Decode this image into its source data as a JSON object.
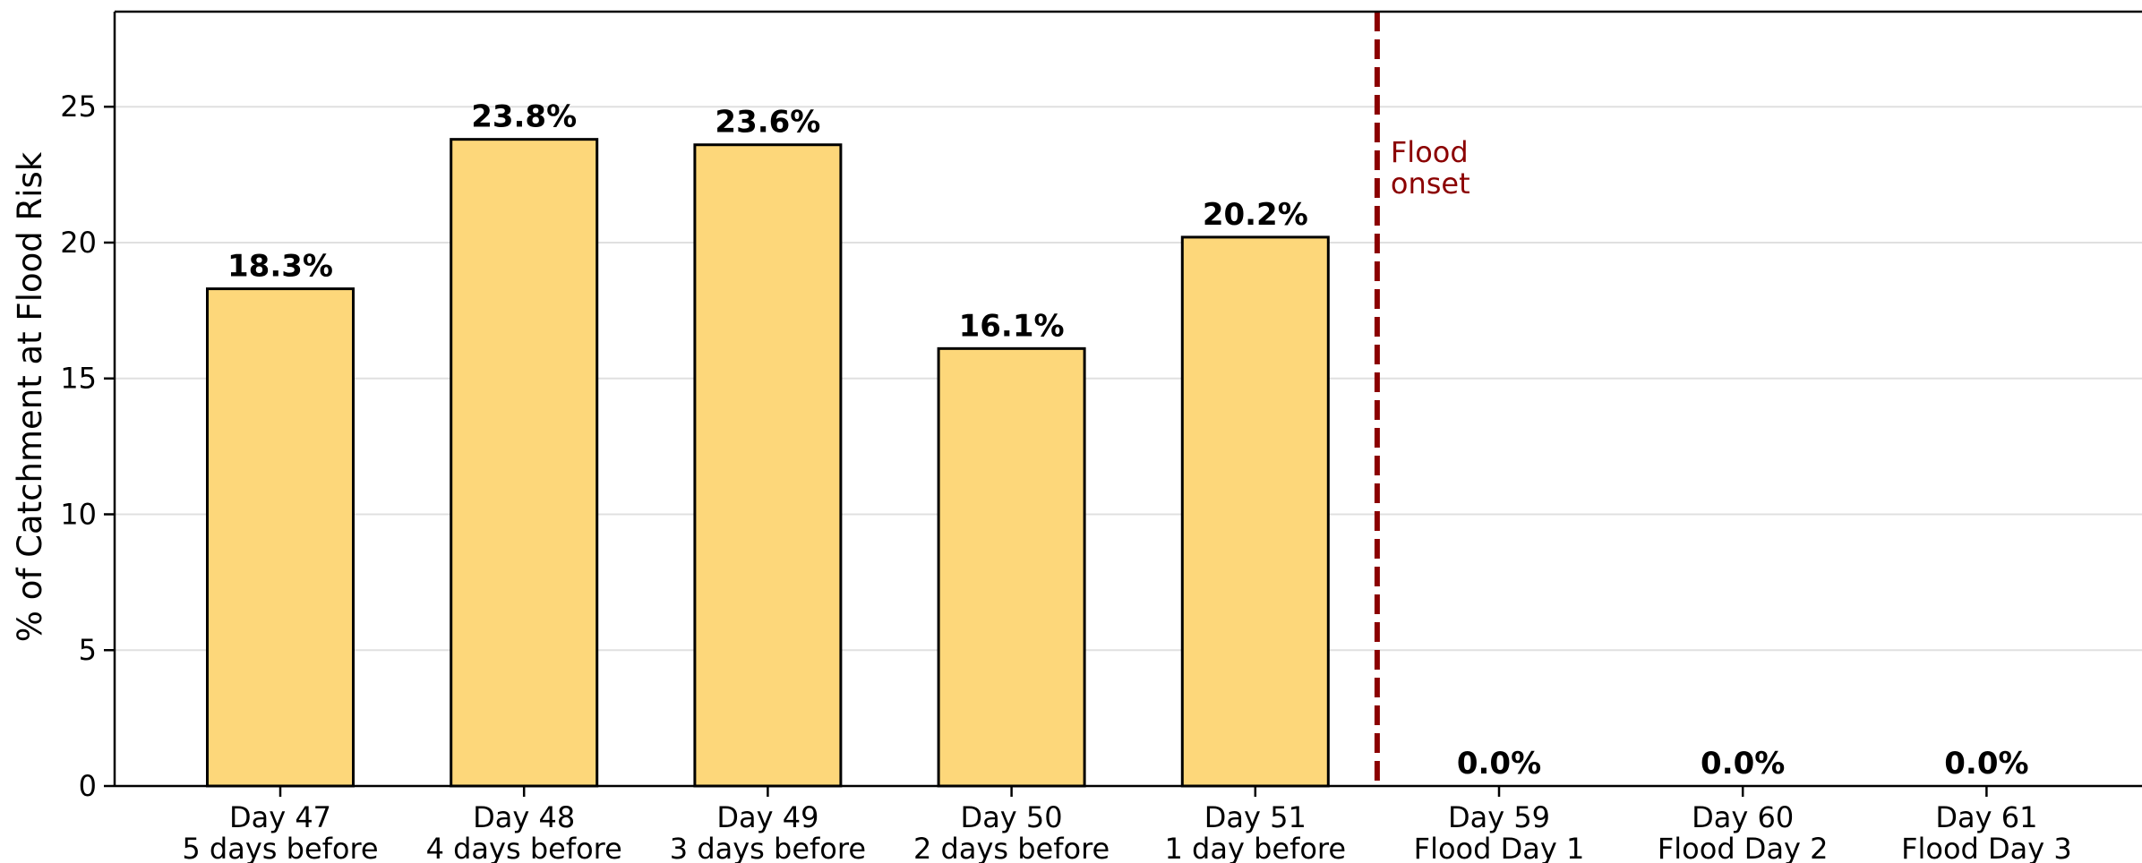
{
  "chart_data": {
    "type": "bar",
    "categories": [
      [
        "Day 47",
        "5 days before"
      ],
      [
        "Day 48",
        "4 days before"
      ],
      [
        "Day 49",
        "3 days before"
      ],
      [
        "Day 50",
        "2 days before"
      ],
      [
        "Day 51",
        "1 day before"
      ],
      [
        "Day 59",
        "Flood Day 1"
      ],
      [
        "Day 60",
        "Flood Day 2"
      ],
      [
        "Day 61",
        "Flood Day 3"
      ]
    ],
    "values": [
      18.3,
      23.8,
      23.6,
      16.1,
      20.2,
      0.0,
      0.0,
      0.0
    ],
    "data_labels": [
      "18.3%",
      "23.8%",
      "23.6%",
      "16.1%",
      "20.2%",
      "0.0%",
      "0.0%",
      "0.0%"
    ],
    "ylabel": "% of Catchment at Flood Risk",
    "ylim": [
      0,
      28.5
    ],
    "yticks": [
      0,
      5,
      10,
      15,
      20,
      25
    ],
    "grid": "horizontal",
    "bar_color": "#fdd77a",
    "bar_edge_color": "#000000",
    "annotation": {
      "lines": [
        "Flood",
        "onset"
      ],
      "position_between_categories": 4.5,
      "color": "#8b0000",
      "style": "dashed"
    }
  }
}
